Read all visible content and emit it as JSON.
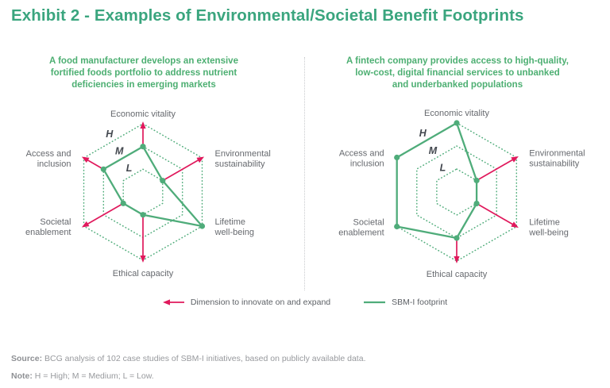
{
  "title": "Exhibit 2 - Examples of Environmental/Societal Benefit Footprints",
  "colors": {
    "title_teal": "#3aa57e",
    "chart_green": "#4fac7a",
    "subtitle_green": "#4daf72",
    "arrow_red": "#e0195c",
    "axis_label_gray": "#66696e",
    "ring_label_gray": "#42474e",
    "legend_text_gray": "#5d6166",
    "footer_gray": "#97999d",
    "divider_gray": "#c9cbce"
  },
  "chart_data": [
    {
      "type": "radar",
      "title": "A food manufacturer develops an extensive fortified foods portfolio to address nutrient deficiencies in emerging markets",
      "title_lines": [
        "A food manufacturer develops an extensive",
        "fortified foods portfolio to address nutrient",
        "deficiencies in emerging markets"
      ],
      "categories": [
        "Economic vitality",
        "Environmental sustainability",
        "Lifetime well-being",
        "Ethical capacity",
        "Societal enablement",
        "Access and inclusion"
      ],
      "category_lines": [
        [
          "Economic vitality"
        ],
        [
          "Environmental",
          "sustainability"
        ],
        [
          "Lifetime",
          "well-being"
        ],
        [
          "Ethical capacity"
        ],
        [
          "Societal",
          "enablement"
        ],
        [
          "Access and",
          "inclusion"
        ]
      ],
      "ring_labels": [
        "L",
        "M",
        "H"
      ],
      "scale": {
        "L": 1,
        "M": 2,
        "H": 3
      },
      "series": [
        {
          "name": "SBM-I footprint",
          "values": [
            "M",
            "L",
            "H",
            "L",
            "L",
            "M"
          ]
        }
      ],
      "arrows": [
        "Economic vitality",
        "Environmental sustainability",
        "Ethical capacity",
        "Societal enablement",
        "Access and inclusion"
      ]
    },
    {
      "type": "radar",
      "title": "A fintech company provides access to high-quality, low-cost, digital financial services to unbanked and underbanked populations",
      "title_lines": [
        "A fintech company provides access to high-quality,",
        "low-cost, digital financial services to unbanked",
        "and underbanked populations"
      ],
      "categories": [
        "Economic vitality",
        "Environmental sustainability",
        "Lifetime well-being",
        "Ethical capacity",
        "Societal enablement",
        "Access and inclusion"
      ],
      "category_lines": [
        [
          "Economic vitality"
        ],
        [
          "Environmental",
          "sustainability"
        ],
        [
          "Lifetime",
          "well-being"
        ],
        [
          "Ethical capacity"
        ],
        [
          "Societal",
          "enablement"
        ],
        [
          "Access and",
          "inclusion"
        ]
      ],
      "ring_labels": [
        "L",
        "M",
        "H"
      ],
      "scale": {
        "L": 1,
        "M": 2,
        "H": 3
      },
      "series": [
        {
          "name": "SBM-I footprint",
          "values": [
            "H",
            "L",
            "L",
            "M",
            "H",
            "H"
          ]
        }
      ],
      "arrows": [
        "Environmental sustainability",
        "Lifetime well-being",
        "Ethical capacity"
      ]
    }
  ],
  "legend": [
    {
      "icon": "left-arrow",
      "color": "#e0195c",
      "label": "Dimension to innovate on and expand"
    },
    {
      "icon": "line",
      "color": "#4fac7a",
      "label": "SBM-I footprint"
    }
  ],
  "footer": {
    "source_label": "Source:",
    "source_text": "BCG analysis of 102 case studies of SBM-I initiatives, based on publicly available data.",
    "note_label": "Note:",
    "note_text": "H = High; M = Medium; L = Low."
  }
}
